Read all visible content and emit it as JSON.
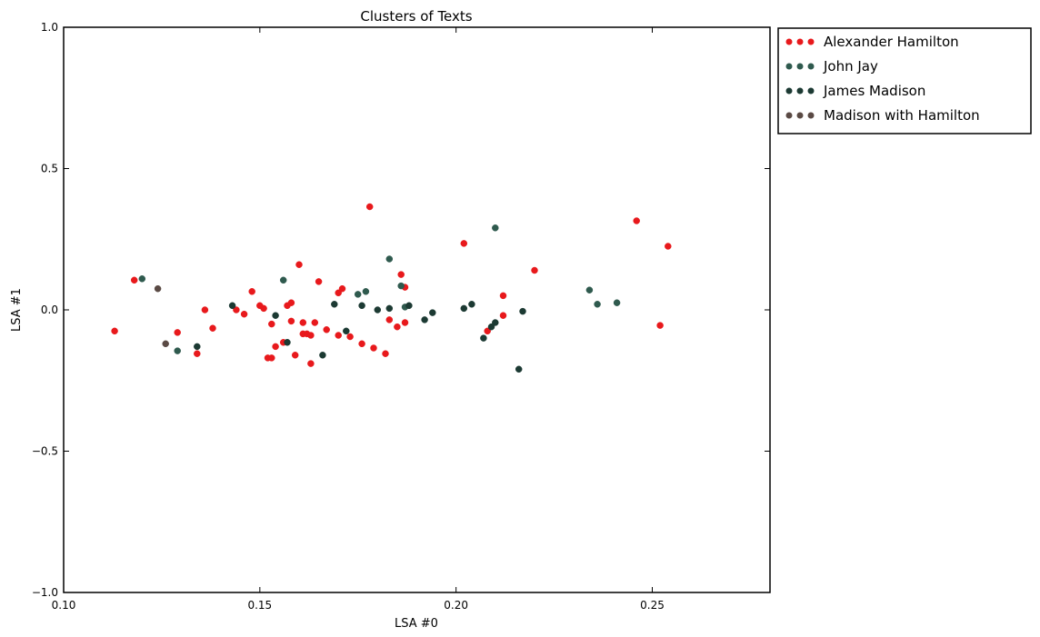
{
  "chart_data": {
    "type": "scatter",
    "title": "Clusters of Texts",
    "xlabel": "LSA #0",
    "ylabel": "LSA #1",
    "xlim": [
      0.1,
      0.28
    ],
    "ylim": [
      -1.0,
      1.0
    ],
    "xticks": [
      0.1,
      0.15,
      0.2,
      0.25
    ],
    "xtick_labels": [
      "0.10",
      "0.15",
      "0.20",
      "0.25"
    ],
    "yticks": [
      -1.0,
      -0.5,
      0.0,
      0.5,
      1.0
    ],
    "ytick_labels": [
      "−1.0",
      "−0.5",
      "0.0",
      "0.5",
      "1.0"
    ],
    "grid": false,
    "legend_position": "outside-top-right",
    "series": [
      {
        "name": "Alexander Hamilton",
        "color": "#e8191c",
        "points": [
          [
            0.113,
            -0.075
          ],
          [
            0.118,
            0.105
          ],
          [
            0.129,
            -0.08
          ],
          [
            0.134,
            -0.155
          ],
          [
            0.136,
            0.0
          ],
          [
            0.138,
            -0.065
          ],
          [
            0.144,
            0.0
          ],
          [
            0.146,
            -0.015
          ],
          [
            0.148,
            0.065
          ],
          [
            0.15,
            0.015
          ],
          [
            0.151,
            0.005
          ],
          [
            0.152,
            -0.17
          ],
          [
            0.153,
            -0.05
          ],
          [
            0.153,
            -0.17
          ],
          [
            0.154,
            -0.13
          ],
          [
            0.156,
            -0.115
          ],
          [
            0.157,
            0.015
          ],
          [
            0.158,
            0.025
          ],
          [
            0.158,
            -0.04
          ],
          [
            0.159,
            -0.16
          ],
          [
            0.16,
            0.16
          ],
          [
            0.161,
            -0.085
          ],
          [
            0.161,
            -0.045
          ],
          [
            0.162,
            -0.085
          ],
          [
            0.163,
            -0.09
          ],
          [
            0.163,
            -0.19
          ],
          [
            0.164,
            -0.045
          ],
          [
            0.165,
            0.1
          ],
          [
            0.167,
            -0.07
          ],
          [
            0.17,
            0.06
          ],
          [
            0.17,
            -0.09
          ],
          [
            0.171,
            0.075
          ],
          [
            0.173,
            -0.095
          ],
          [
            0.176,
            -0.12
          ],
          [
            0.178,
            0.365
          ],
          [
            0.179,
            -0.135
          ],
          [
            0.182,
            -0.155
          ],
          [
            0.183,
            -0.035
          ],
          [
            0.185,
            -0.06
          ],
          [
            0.186,
            0.125
          ],
          [
            0.187,
            -0.045
          ],
          [
            0.187,
            0.08
          ],
          [
            0.202,
            0.235
          ],
          [
            0.208,
            -0.075
          ],
          [
            0.212,
            0.05
          ],
          [
            0.212,
            -0.02
          ],
          [
            0.22,
            0.14
          ],
          [
            0.246,
            0.315
          ],
          [
            0.252,
            -0.055
          ],
          [
            0.254,
            0.225
          ]
        ]
      },
      {
        "name": "John Jay",
        "color": "#2f5a4e",
        "points": [
          [
            0.12,
            0.11
          ],
          [
            0.129,
            -0.145
          ],
          [
            0.156,
            0.105
          ],
          [
            0.175,
            0.055
          ],
          [
            0.177,
            0.065
          ],
          [
            0.183,
            0.18
          ],
          [
            0.186,
            0.085
          ],
          [
            0.187,
            0.01
          ],
          [
            0.21,
            0.29
          ],
          [
            0.234,
            0.07
          ],
          [
            0.236,
            0.02
          ],
          [
            0.241,
            0.025
          ]
        ]
      },
      {
        "name": "James Madison",
        "color": "#1c3a33",
        "points": [
          [
            0.134,
            -0.13
          ],
          [
            0.143,
            0.015
          ],
          [
            0.154,
            -0.02
          ],
          [
            0.157,
            -0.115
          ],
          [
            0.166,
            -0.16
          ],
          [
            0.169,
            0.02
          ],
          [
            0.172,
            -0.075
          ],
          [
            0.176,
            0.015
          ],
          [
            0.18,
            0.0
          ],
          [
            0.183,
            0.005
          ],
          [
            0.188,
            0.015
          ],
          [
            0.192,
            -0.035
          ],
          [
            0.194,
            -0.01
          ],
          [
            0.202,
            0.005
          ],
          [
            0.204,
            0.02
          ],
          [
            0.207,
            -0.1
          ],
          [
            0.209,
            -0.06
          ],
          [
            0.21,
            -0.045
          ],
          [
            0.216,
            -0.21
          ],
          [
            0.217,
            -0.005
          ]
        ]
      },
      {
        "name": "Madison with Hamilton",
        "color": "#5a4a44",
        "points": [
          [
            0.124,
            0.075
          ],
          [
            0.126,
            -0.12
          ]
        ]
      }
    ]
  }
}
